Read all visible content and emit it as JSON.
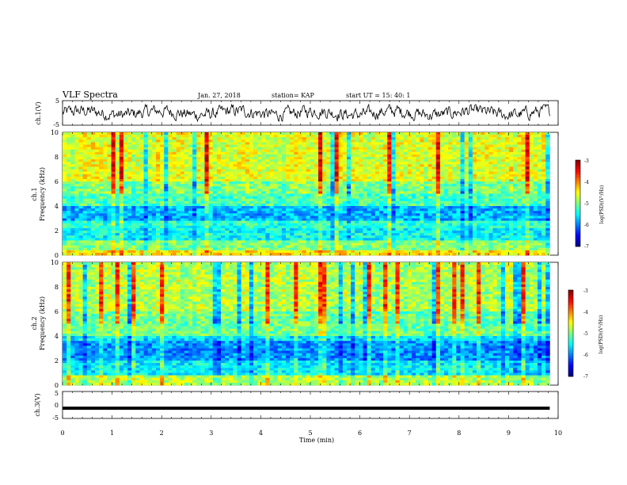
{
  "header": {
    "title": "VLF Spectra",
    "date": "Jan. 27, 2018",
    "station": "station= KAP",
    "start": "start  UT =  15: 40: 1"
  },
  "chart_data": [
    {
      "type": "line",
      "name": "ch1-waveform",
      "ylabel": "ch.1(V)",
      "ylim": [
        -5,
        5
      ],
      "yticks": [
        "5",
        "-5"
      ],
      "xlim": [
        0,
        10
      ],
      "x_extent": [
        0,
        9.83
      ],
      "description_values": "noise-like waveform oscillating roughly between -3 and +3 V"
    },
    {
      "type": "heatmap",
      "name": "ch1-spectrogram",
      "ylabel_line1": "ch.1",
      "ylabel_line2": "Frequency (kHz)",
      "ylim": [
        0,
        10
      ],
      "yticks": [
        "0",
        "2",
        "4",
        "6",
        "8",
        "10"
      ],
      "xlim": [
        0,
        10
      ],
      "x_extent": [
        0,
        9.83
      ],
      "colorbar": {
        "label": "log(PSD)(V²/Hz)",
        "range": [
          -7,
          -3
        ],
        "ticks": [
          "-3",
          "-4",
          "-5",
          "-6",
          "-7"
        ]
      }
    },
    {
      "type": "heatmap",
      "name": "ch2-spectrogram",
      "ylabel_line1": "ch.2",
      "ylabel_line2": "Frequency (kHz)",
      "ylim": [
        0,
        10
      ],
      "yticks": [
        "0",
        "2",
        "4",
        "6",
        "8",
        "10"
      ],
      "xlim": [
        0,
        10
      ],
      "x_extent": [
        0,
        9.83
      ],
      "colorbar": {
        "label": "log(PSD)(V²/Hz)",
        "range": [
          -7,
          -3
        ],
        "ticks": [
          "-3",
          "-4",
          "-5",
          "-6",
          "-7"
        ]
      }
    },
    {
      "type": "line",
      "name": "ch3-signal",
      "ylabel": "ch.3(V)",
      "ylim": [
        -5,
        5
      ],
      "yticks": [
        "5",
        "0",
        "-5"
      ],
      "xlim": [
        0,
        10
      ],
      "x_extent": [
        0,
        9.83
      ],
      "constant_value": -1.2
    }
  ],
  "xaxis": {
    "label": "Time (min)",
    "ticks": [
      "0",
      "1",
      "2",
      "3",
      "4",
      "5",
      "6",
      "7",
      "8",
      "9",
      "10"
    ]
  },
  "colors": {
    "frame": "#000000",
    "background": "#ffffff"
  }
}
